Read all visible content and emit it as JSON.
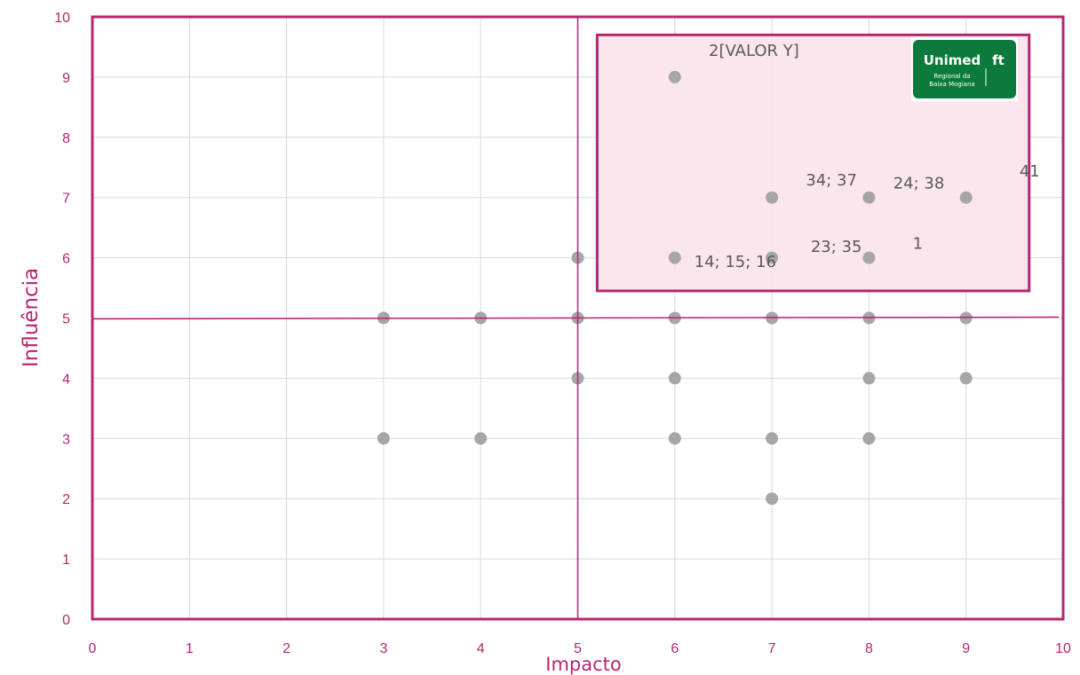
{
  "chart_data": {
    "type": "scatter",
    "xlabel": "Impacto",
    "ylabel": "Influência",
    "xlim": [
      0,
      10
    ],
    "ylim": [
      0,
      10
    ],
    "xticks": [
      "0",
      "1",
      "2",
      "3",
      "4",
      "5",
      "6",
      "7",
      "8",
      "9",
      "10"
    ],
    "yticks": [
      "0",
      "1",
      "2",
      "3",
      "4",
      "5",
      "6",
      "7",
      "8",
      "9",
      "10"
    ],
    "grid": true,
    "colors": {
      "frame": "#b5266f",
      "points": "#a6a6a6",
      "highlight_fill": "#fbe3ec",
      "grid": "#d9d9d9",
      "logo": "#0b7a3a"
    },
    "points": [
      {
        "x": 6,
        "y": 9
      },
      {
        "x": 7,
        "y": 7
      },
      {
        "x": 8,
        "y": 7
      },
      {
        "x": 9,
        "y": 7
      },
      {
        "x": 5,
        "y": 6
      },
      {
        "x": 6,
        "y": 6
      },
      {
        "x": 7,
        "y": 6
      },
      {
        "x": 8,
        "y": 6
      },
      {
        "x": 3,
        "y": 5
      },
      {
        "x": 4,
        "y": 5
      },
      {
        "x": 5,
        "y": 5
      },
      {
        "x": 6,
        "y": 5
      },
      {
        "x": 7,
        "y": 5
      },
      {
        "x": 8,
        "y": 5
      },
      {
        "x": 9,
        "y": 5
      },
      {
        "x": 5,
        "y": 4
      },
      {
        "x": 6,
        "y": 4
      },
      {
        "x": 8,
        "y": 4
      },
      {
        "x": 9,
        "y": 4
      },
      {
        "x": 3,
        "y": 3
      },
      {
        "x": 4,
        "y": 3
      },
      {
        "x": 6,
        "y": 3
      },
      {
        "x": 7,
        "y": 3
      },
      {
        "x": 8,
        "y": 3
      },
      {
        "x": 7,
        "y": 2
      }
    ],
    "quadrant_lines": {
      "x": 5,
      "y": 5
    },
    "highlight_region": {
      "x": [
        5.2,
        9.65
      ],
      "y": [
        5.45,
        9.7
      ]
    },
    "annotations": [
      {
        "text": "2[VALOR Y]",
        "x": 6.35,
        "y": 9.35
      },
      {
        "text": "34; 37",
        "x": 7.35,
        "y": 7.2
      },
      {
        "text": "24; 38",
        "x": 8.25,
        "y": 7.15
      },
      {
        "text": "41",
        "x": 9.55,
        "y": 7.35
      },
      {
        "text": "23; 35",
        "x": 7.4,
        "y": 6.1
      },
      {
        "text": "1",
        "x": 8.45,
        "y": 6.15
      },
      {
        "text": "14; 15; 16",
        "x": 6.2,
        "y": 5.85
      }
    ]
  },
  "logo": {
    "name": "Unimed",
    "subtitle_line1": "Regional da",
    "subtitle_line2": "Baixa Mogiana"
  }
}
